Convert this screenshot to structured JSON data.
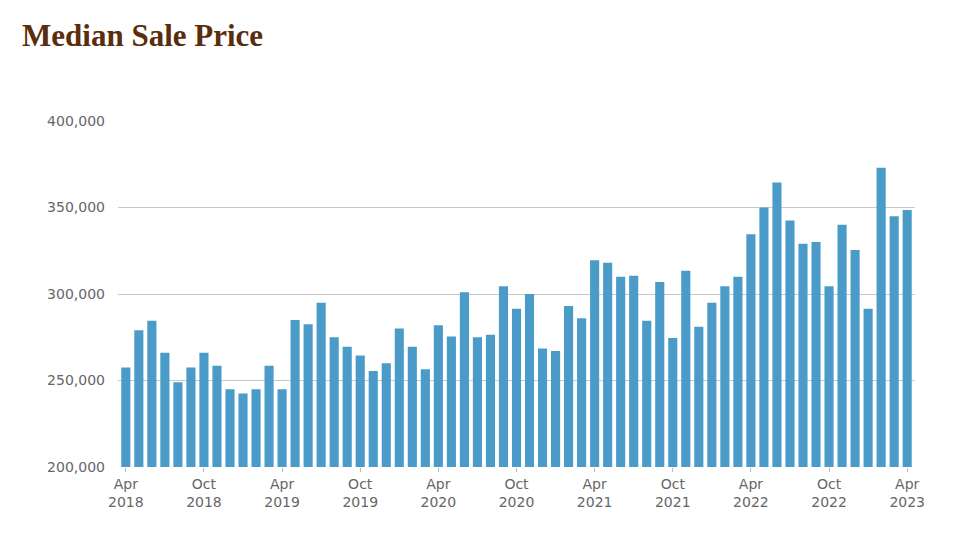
{
  "chart_data": {
    "type": "bar",
    "title": "Median Sale Price",
    "categories": [
      "Apr 2018",
      null,
      null,
      null,
      null,
      null,
      "Oct 2018",
      null,
      null,
      null,
      null,
      null,
      "Apr 2019",
      null,
      null,
      null,
      null,
      null,
      "Oct 2019",
      null,
      null,
      null,
      null,
      null,
      "Apr 2020",
      null,
      null,
      null,
      null,
      null,
      "Oct 2020",
      null,
      null,
      null,
      null,
      null,
      "Apr 2021",
      null,
      null,
      null,
      null,
      null,
      "Oct 2021",
      null,
      null,
      null,
      null,
      null,
      "Apr 2022",
      null,
      null,
      null,
      null,
      null,
      "Oct 2022",
      null,
      null,
      null,
      null,
      null,
      "Apr 2023"
    ],
    "values": [
      257500,
      279000,
      284500,
      266000,
      249000,
      257500,
      266000,
      258500,
      245000,
      242500,
      245000,
      258500,
      245000,
      285000,
      282500,
      295000,
      275000,
      269500,
      264500,
      255500,
      260000,
      280000,
      269500,
      256500,
      282000,
      275500,
      301000,
      275000,
      276500,
      304500,
      291500,
      300000,
      268500,
      267000,
      293000,
      286000,
      319500,
      318000,
      310000,
      310500,
      284500,
      307000,
      274500,
      313500,
      281000,
      295000,
      304500,
      310000,
      334500,
      350000,
      364500,
      342500,
      329000,
      330000,
      304500,
      340000,
      325500,
      291500,
      373000,
      345000,
      348500
    ],
    "color": "#4a9bc7",
    "ylim": [
      200000,
      400000
    ],
    "yticks": [
      {
        "value": 200000,
        "label": "200,000"
      },
      {
        "value": 250000,
        "label": "250,000"
      },
      {
        "value": 300000,
        "label": "300,000"
      },
      {
        "value": 350000,
        "label": "350,000"
      },
      {
        "value": 400000,
        "label": "400,000"
      }
    ],
    "grid": true
  }
}
